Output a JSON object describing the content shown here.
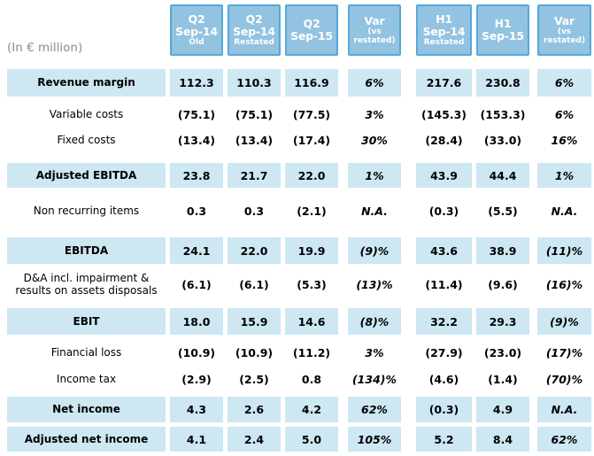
{
  "unit_label": "(In € million)",
  "colors": {
    "header_fill": "#92c3e0",
    "header_border": "#55a9da",
    "row_highlight": "#cde7f3",
    "unit_label_text": "#8c8c8c"
  },
  "header": {
    "columns": [
      {
        "period": "Q2",
        "date": "Sep-14",
        "note": "Old",
        "var": false
      },
      {
        "period": "Q2",
        "date": "Sep-14",
        "note": "Restated",
        "var": false
      },
      {
        "period": "Q2",
        "date": "Sep-15",
        "note": "",
        "var": false
      },
      {
        "period": "Var",
        "date": "",
        "note": "(vs restated)",
        "var": true
      },
      {
        "period": "H1",
        "date": "Sep-14",
        "note": "Restated",
        "var": false
      },
      {
        "period": "H1",
        "date": "Sep-15",
        "note": "",
        "var": false
      },
      {
        "period": "Var",
        "date": "",
        "note": "(vs restated)",
        "var": true
      }
    ]
  },
  "rows": [
    {
      "label": "Revenue margin",
      "highlight": true,
      "values": [
        "112.3",
        "110.3",
        "116.9",
        "6%",
        "217.6",
        "230.8",
        "6%"
      ]
    },
    {
      "label": "Variable costs",
      "highlight": false,
      "values": [
        "(75.1)",
        "(75.1)",
        "(77.5)",
        "3%",
        "(145.3)",
        "(153.3)",
        "6%"
      ]
    },
    {
      "label": "Fixed costs",
      "highlight": false,
      "values": [
        "(13.4)",
        "(13.4)",
        "(17.4)",
        "30%",
        "(28.4)",
        "(33.0)",
        "16%"
      ]
    },
    {
      "label": "Adjusted EBITDA",
      "highlight": true,
      "values": [
        "23.8",
        "21.7",
        "22.0",
        "1%",
        "43.9",
        "44.4",
        "1%"
      ]
    },
    {
      "label": "Non recurring items",
      "highlight": false,
      "values": [
        "0.3",
        "0.3",
        "(2.1)",
        "N.A.",
        "(0.3)",
        "(5.5)",
        "N.A."
      ]
    },
    {
      "label": "EBITDA",
      "highlight": true,
      "values": [
        "24.1",
        "22.0",
        "19.9",
        "(9)%",
        "43.6",
        "38.9",
        "(11)%"
      ]
    },
    {
      "label": "D&A incl. impairment & results on assets disposals",
      "highlight": false,
      "values": [
        "(6.1)",
        "(6.1)",
        "(5.3)",
        "(13)%",
        "(11.4)",
        "(9.6)",
        "(16)%"
      ]
    },
    {
      "label": "EBIT",
      "highlight": true,
      "values": [
        "18.0",
        "15.9",
        "14.6",
        "(8)%",
        "32.2",
        "29.3",
        "(9)%"
      ]
    },
    {
      "label": "Financial loss",
      "highlight": false,
      "values": [
        "(10.9)",
        "(10.9)",
        "(11.2)",
        "3%",
        "(27.9)",
        "(23.0)",
        "(17)%"
      ]
    },
    {
      "label": "Income tax",
      "highlight": false,
      "values": [
        "(2.9)",
        "(2.5)",
        "0.8",
        "(134)%",
        "(4.6)",
        "(1.4)",
        "(70)%"
      ]
    },
    {
      "label": "Net income",
      "highlight": true,
      "values": [
        "4.3",
        "2.6",
        "4.2",
        "62%",
        "(0.3)",
        "4.9",
        "N.A."
      ]
    },
    {
      "label": "Adjusted net income",
      "highlight": true,
      "values": [
        "4.1",
        "2.4",
        "5.0",
        "105%",
        "5.2",
        "8.4",
        "62%"
      ]
    }
  ]
}
